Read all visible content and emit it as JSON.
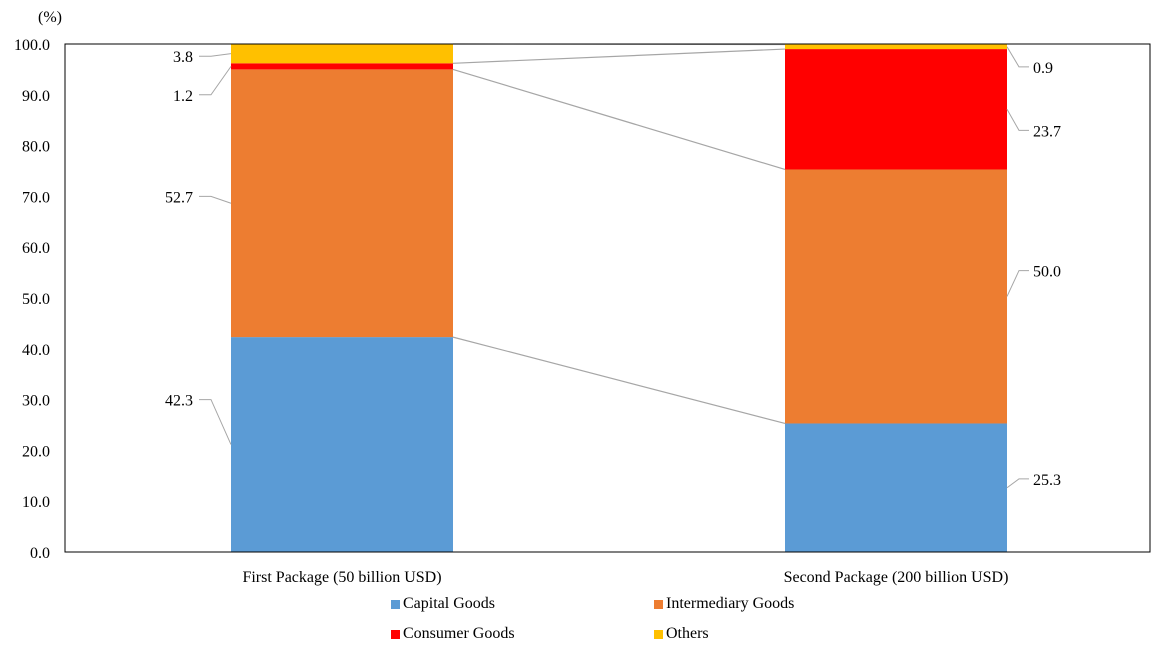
{
  "chart_data": {
    "type": "bar",
    "stacked": true,
    "y_unit_label": "(%)",
    "categories": [
      "First Package (50 billion USD)",
      "Second Package (200 billion USD)"
    ],
    "ylim": [
      0,
      100
    ],
    "yticks": [
      "0.0",
      "10.0",
      "20.0",
      "30.0",
      "40.0",
      "50.0",
      "60.0",
      "70.0",
      "80.0",
      "90.0",
      "100.0"
    ],
    "grid": false,
    "legend_position": "bottom",
    "series": [
      {
        "name": "Capital Goods",
        "color": "#5b9bd5",
        "values": [
          42.3,
          25.3
        ],
        "labels": [
          "42.3",
          "25.3"
        ]
      },
      {
        "name": "Intermediary Goods",
        "color": "#ed7d31",
        "values": [
          52.7,
          50.0
        ],
        "labels": [
          "52.7",
          "50.0"
        ]
      },
      {
        "name": "Consumer Goods",
        "color": "#ff0000",
        "values": [
          1.2,
          23.7
        ],
        "labels": [
          "1.2",
          "23.7"
        ]
      },
      {
        "name": "Others",
        "color": "#ffc000",
        "values": [
          3.8,
          0.9
        ],
        "labels": [
          "3.8",
          "0.9"
        ]
      }
    ]
  }
}
